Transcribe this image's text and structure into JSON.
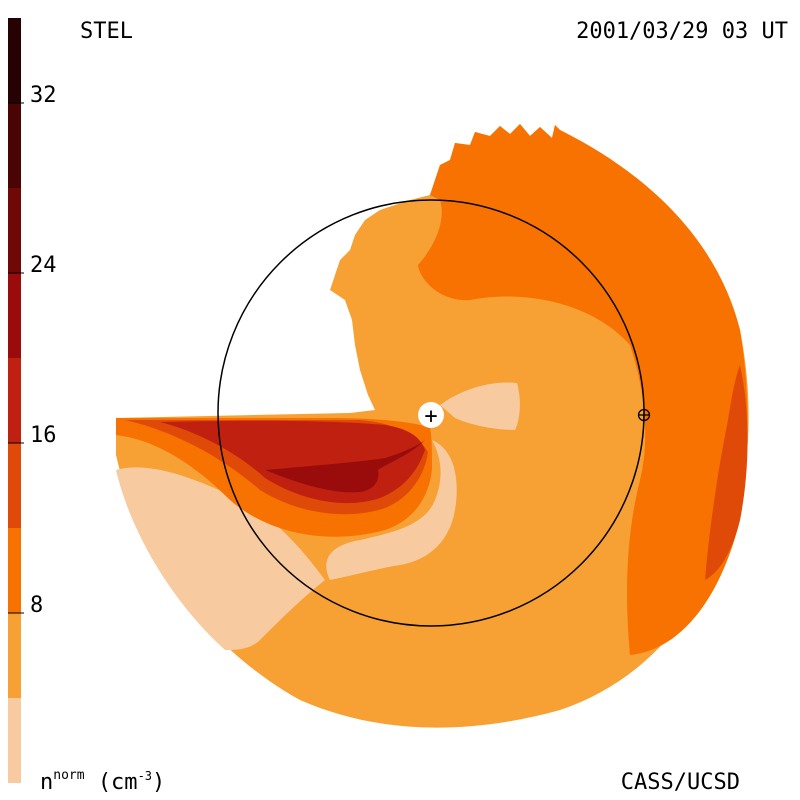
{
  "header": {
    "station": "STEL",
    "datetime": "2001/03/29 03 UT"
  },
  "footer": {
    "credit": "CASS/UCSD",
    "colorbar_quantity": "n",
    "colorbar_superscript": "norm",
    "colorbar_unit_open": "(cm",
    "colorbar_unit_exp": "-3",
    "colorbar_unit_close": ")"
  },
  "colorbar": {
    "min": 0,
    "max": 36,
    "ticks": [
      {
        "value": 8,
        "label": "8"
      },
      {
        "value": 16,
        "label": "16"
      },
      {
        "value": 24,
        "label": "24"
      },
      {
        "value": 32,
        "label": "32"
      }
    ],
    "bands": [
      {
        "from": 0,
        "to": 4,
        "color": "#f7caa0"
      },
      {
        "from": 4,
        "to": 8,
        "color": "#f7a034"
      },
      {
        "from": 8,
        "to": 12,
        "color": "#f77200"
      },
      {
        "from": 12,
        "to": 16,
        "color": "#e04a08"
      },
      {
        "from": 16,
        "to": 20,
        "color": "#c02010"
      },
      {
        "from": 20,
        "to": 24,
        "color": "#9a0c0c"
      },
      {
        "from": 24,
        "to": 28,
        "color": "#700808"
      },
      {
        "from": 28,
        "to": 32,
        "color": "#4a0404"
      },
      {
        "from": 32,
        "to": 36,
        "color": "#260202"
      }
    ]
  },
  "map": {
    "sun_symbol": "+",
    "earth_symbol": "⊕",
    "colors": {
      "light": "#f7caa0",
      "base": "#f7a034",
      "orange": "#f77200",
      "deep_orange": "#e04a08",
      "red": "#c02010",
      "dark_red": "#9a0c0c"
    }
  }
}
